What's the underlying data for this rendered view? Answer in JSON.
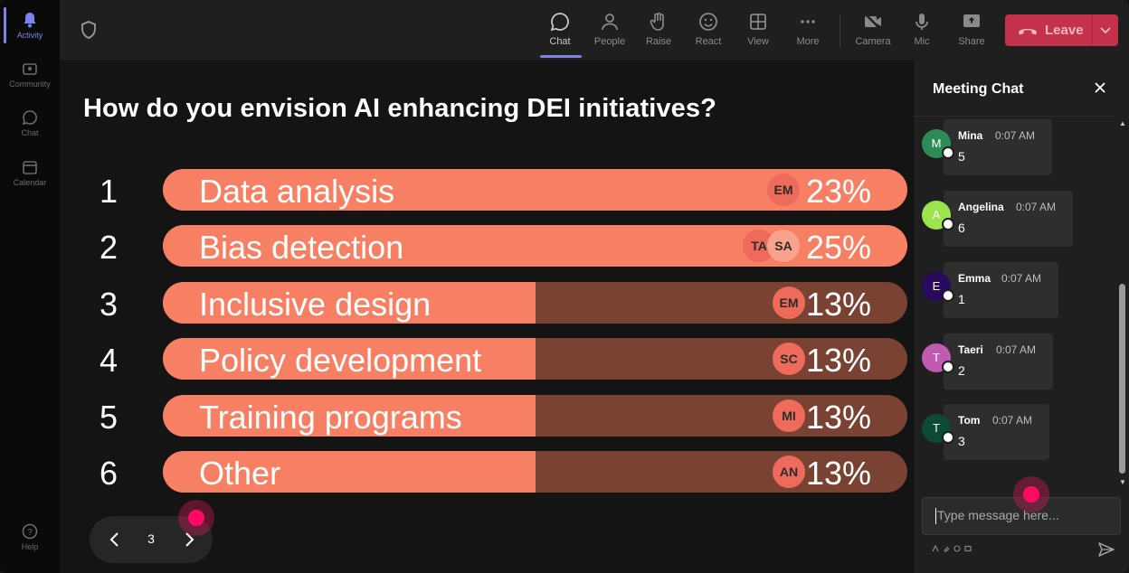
{
  "rail": {
    "items": [
      {
        "label": "Activity",
        "icon": "bell-icon"
      },
      {
        "label": "Community",
        "icon": "community-icon"
      },
      {
        "label": "Chat",
        "icon": "chat-icon"
      },
      {
        "label": "Calendar",
        "icon": "calendar-icon"
      },
      {
        "label": "Help",
        "icon": "help-icon"
      }
    ]
  },
  "toolbar": {
    "chat": "Chat",
    "people": "People",
    "raise": "Raise",
    "react": "React",
    "view": "View",
    "more": "More",
    "camera": "Camera",
    "mic": "Mic",
    "share": "Share",
    "leave": "Leave"
  },
  "poll": {
    "question": "How do you envision AI enhancing DEI initiatives?",
    "options": [
      {
        "num": "1",
        "label": "Data analysis",
        "pct": "23%",
        "fill": 1.0,
        "voters": [
          "EM"
        ]
      },
      {
        "num": "2",
        "label": "Bias detection",
        "pct": "25%",
        "fill": 1.0,
        "voters": [
          "TA",
          "SA"
        ]
      },
      {
        "num": "3",
        "label": "Inclusive design",
        "pct": "13%",
        "fill": 0.5,
        "voters": [
          "EM"
        ]
      },
      {
        "num": "4",
        "label": "Policy development",
        "pct": "13%",
        "fill": 0.5,
        "voters": [
          "SC"
        ]
      },
      {
        "num": "5",
        "label": "Training programs",
        "pct": "13%",
        "fill": 0.5,
        "voters": [
          "MI"
        ]
      },
      {
        "num": "6",
        "label": "Other",
        "pct": "13%",
        "fill": 0.5,
        "voters": [
          "AN"
        ]
      }
    ],
    "page": "3"
  },
  "chat": {
    "title": "Meeting Chat",
    "messages": [
      {
        "initial": "M",
        "name": "Mina",
        "time": "0:07 AM",
        "text": "5",
        "color": "#2e8b57"
      },
      {
        "initial": "A",
        "name": "Angelina",
        "time": "0:07 AM",
        "text": "6",
        "color": "#9be34f"
      },
      {
        "initial": "E",
        "name": "Emma",
        "time": "0:07 AM",
        "text": "1",
        "color": "#2a0a5e"
      },
      {
        "initial": "T",
        "name": "Taeri",
        "time": "0:07 AM",
        "text": "2",
        "color": "#c05ab3"
      },
      {
        "initial": "T",
        "name": "Tom",
        "time": "0:07 AM",
        "text": "3",
        "color": "#0d4a34"
      }
    ],
    "input_placeholder": "Type message here..."
  }
}
